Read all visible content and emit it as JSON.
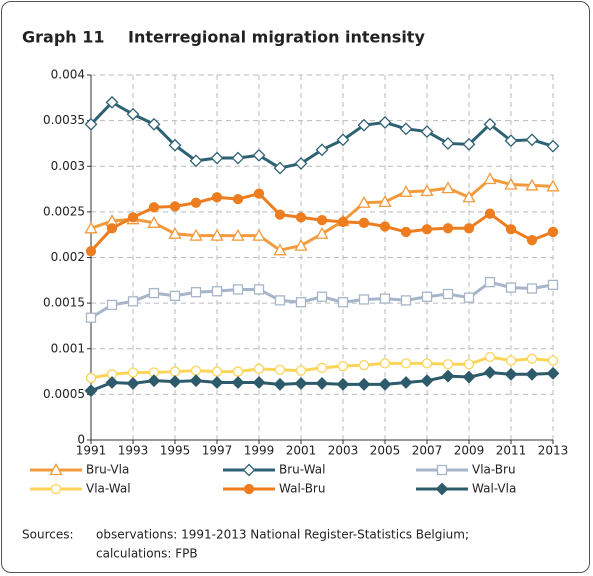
{
  "chart_data": {
    "type": "line",
    "graph_number": "Graph 11",
    "title": "Interregional migration intensity",
    "x": [
      1991,
      1992,
      1993,
      1994,
      1995,
      1996,
      1997,
      1998,
      1999,
      2000,
      2001,
      2002,
      2003,
      2004,
      2005,
      2006,
      2007,
      2008,
      2009,
      2010,
      2011,
      2012,
      2013
    ],
    "xlim": [
      1991,
      2013
    ],
    "xticks": [
      1991,
      1993,
      1995,
      1997,
      1999,
      2001,
      2003,
      2005,
      2007,
      2009,
      2011,
      2013
    ],
    "ylim": [
      0,
      0.004
    ],
    "yticks": [
      0,
      0.0005,
      0.001,
      0.0015,
      0.002,
      0.0025,
      0.003,
      0.0035,
      0.004
    ],
    "grid": true,
    "series": [
      {
        "name": "Bru-Vla",
        "color": "#f39a3c",
        "marker": "triangle",
        "filled": false,
        "values": [
          0.00232,
          0.0024,
          0.00242,
          0.00238,
          0.00226,
          0.00224,
          0.00224,
          0.00224,
          0.00224,
          0.00208,
          0.00213,
          0.00226,
          0.0024,
          0.0026,
          0.00261,
          0.00272,
          0.00273,
          0.00276,
          0.00266,
          0.00286,
          0.0028,
          0.00279,
          0.00278
        ]
      },
      {
        "name": "Bru-Wal",
        "color": "#2e6273",
        "marker": "diamond",
        "filled": false,
        "values": [
          0.00346,
          0.0037,
          0.00357,
          0.00346,
          0.00323,
          0.00306,
          0.00309,
          0.00309,
          0.00312,
          0.00298,
          0.00303,
          0.00318,
          0.00329,
          0.00345,
          0.00348,
          0.00341,
          0.00338,
          0.00325,
          0.00324,
          0.00346,
          0.00328,
          0.00329,
          0.00322
        ]
      },
      {
        "name": "Vla-Bru",
        "color": "#a7b5c9",
        "marker": "square",
        "filled": false,
        "values": [
          0.00134,
          0.00148,
          0.00152,
          0.00161,
          0.00158,
          0.00162,
          0.00163,
          0.00165,
          0.00165,
          0.00153,
          0.00151,
          0.00157,
          0.00151,
          0.00154,
          0.00155,
          0.00153,
          0.00157,
          0.0016,
          0.00156,
          0.00173,
          0.00167,
          0.00166,
          0.0017
        ]
      },
      {
        "name": "Vla-Wal",
        "color": "#fbd55a",
        "marker": "circle",
        "filled": false,
        "values": [
          0.00068,
          0.00072,
          0.00074,
          0.00074,
          0.00075,
          0.00076,
          0.00075,
          0.00075,
          0.00078,
          0.00077,
          0.00076,
          0.00079,
          0.00081,
          0.00082,
          0.00084,
          0.00084,
          0.00084,
          0.00083,
          0.00083,
          0.00091,
          0.00087,
          0.00089,
          0.00087
        ]
      },
      {
        "name": "Wal-Bru",
        "color": "#ee7d1f",
        "marker": "circle",
        "filled": true,
        "values": [
          0.00207,
          0.00232,
          0.00244,
          0.00255,
          0.00256,
          0.0026,
          0.00266,
          0.00264,
          0.0027,
          0.00247,
          0.00244,
          0.00241,
          0.00239,
          0.00238,
          0.00234,
          0.00228,
          0.00231,
          0.00232,
          0.00232,
          0.00248,
          0.00231,
          0.00219,
          0.00228
        ]
      },
      {
        "name": "Wal-Vla",
        "color": "#2d5b6b",
        "marker": "diamond",
        "filled": true,
        "values": [
          0.00054,
          0.00063,
          0.00062,
          0.00065,
          0.00064,
          0.00065,
          0.00063,
          0.00063,
          0.00063,
          0.00061,
          0.00062,
          0.00062,
          0.00061,
          0.00061,
          0.00061,
          0.00063,
          0.00065,
          0.0007,
          0.00069,
          0.00074,
          0.00072,
          0.00072,
          0.00073
        ]
      }
    ],
    "source_label": "Sources:",
    "source_lines": [
      "observations: 1991-2013 National Register-Statistics Belgium;",
      "calculations: FPB"
    ]
  }
}
